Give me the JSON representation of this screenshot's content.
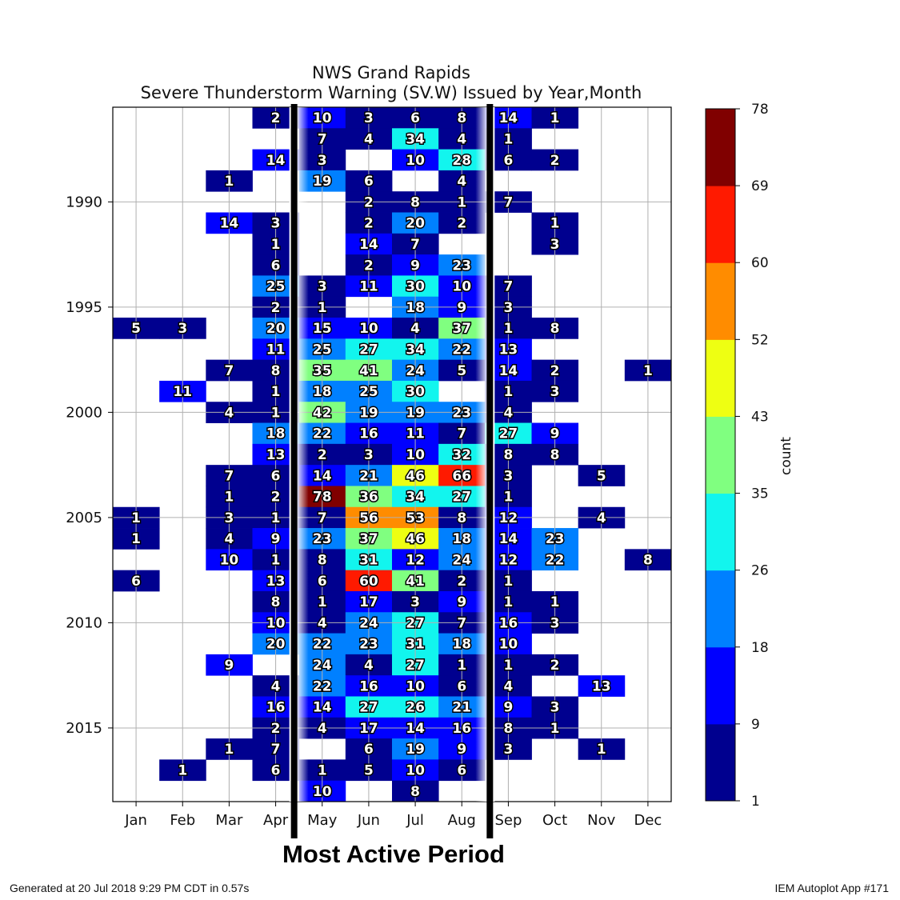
{
  "chart_data": {
    "type": "heatmap",
    "title": "NWS Grand Rapids",
    "subtitle": "Severe Thunderstorm Warning (SV.W) Issued by Year,Month",
    "months": [
      "Jan",
      "Feb",
      "Mar",
      "Apr",
      "May",
      "Jun",
      "Jul",
      "Aug",
      "Sep",
      "Oct",
      "Nov",
      "Dec"
    ],
    "years": [
      1986,
      1987,
      1988,
      1989,
      1990,
      1991,
      1992,
      1993,
      1994,
      1995,
      1996,
      1997,
      1998,
      1999,
      2000,
      2001,
      2002,
      2003,
      2004,
      2005,
      2006,
      2007,
      2008,
      2009,
      2010,
      2011,
      2012,
      2013,
      2014,
      2015,
      2016,
      2017,
      2018
    ],
    "y_ticks": [
      1990,
      1995,
      2000,
      2005,
      2010,
      2015
    ],
    "colorbar": {
      "label": "count",
      "ticks": [
        1,
        9,
        18,
        26,
        35,
        43,
        52,
        60,
        69,
        78
      ],
      "colors": [
        "#00008f",
        "#0000ff",
        "#0080ff",
        "#12f5ee",
        "#80ff80",
        "#eeff12",
        "#ff8c00",
        "#ff1a00",
        "#800000"
      ]
    },
    "values": [
      [
        null,
        null,
        null,
        2,
        10,
        3,
        6,
        8,
        14,
        1,
        null,
        null
      ],
      [
        null,
        null,
        null,
        null,
        7,
        4,
        34,
        4,
        1,
        null,
        null,
        null
      ],
      [
        null,
        null,
        null,
        14,
        3,
        null,
        10,
        28,
        6,
        2,
        null,
        null
      ],
      [
        null,
        null,
        1,
        null,
        19,
        6,
        null,
        4,
        null,
        null,
        null,
        null
      ],
      [
        null,
        null,
        null,
        null,
        null,
        2,
        8,
        1,
        7,
        null,
        null,
        null
      ],
      [
        null,
        null,
        14,
        3,
        null,
        2,
        20,
        2,
        null,
        1,
        null,
        null
      ],
      [
        null,
        null,
        null,
        1,
        null,
        14,
        7,
        null,
        null,
        3,
        null,
        null
      ],
      [
        null,
        null,
        null,
        6,
        null,
        2,
        9,
        23,
        null,
        null,
        null,
        null
      ],
      [
        null,
        null,
        null,
        25,
        3,
        11,
        30,
        10,
        7,
        null,
        null,
        null
      ],
      [
        null,
        null,
        null,
        2,
        1,
        null,
        18,
        9,
        3,
        null,
        null,
        null
      ],
      [
        5,
        3,
        null,
        20,
        15,
        10,
        4,
        37,
        1,
        8,
        null,
        null
      ],
      [
        null,
        null,
        null,
        11,
        25,
        27,
        34,
        22,
        13,
        null,
        null,
        null
      ],
      [
        null,
        null,
        7,
        8,
        35,
        41,
        24,
        5,
        14,
        2,
        null,
        1
      ],
      [
        null,
        11,
        null,
        1,
        18,
        25,
        30,
        null,
        1,
        3,
        null,
        null
      ],
      [
        null,
        null,
        4,
        1,
        42,
        19,
        19,
        23,
        4,
        null,
        null,
        null
      ],
      [
        null,
        null,
        null,
        18,
        22,
        16,
        11,
        7,
        27,
        9,
        null,
        null
      ],
      [
        null,
        null,
        null,
        13,
        2,
        3,
        10,
        32,
        8,
        8,
        null,
        null
      ],
      [
        null,
        null,
        7,
        6,
        14,
        21,
        46,
        66,
        3,
        null,
        5,
        null
      ],
      [
        null,
        null,
        1,
        2,
        78,
        36,
        34,
        27,
        1,
        null,
        null,
        null
      ],
      [
        1,
        null,
        3,
        1,
        7,
        56,
        53,
        8,
        12,
        null,
        4,
        null
      ],
      [
        1,
        null,
        4,
        9,
        23,
        37,
        46,
        18,
        14,
        23,
        null,
        null
      ],
      [
        null,
        null,
        10,
        1,
        8,
        31,
        12,
        24,
        12,
        22,
        null,
        8
      ],
      [
        6,
        null,
        null,
        13,
        6,
        60,
        41,
        2,
        1,
        null,
        null,
        null
      ],
      [
        null,
        null,
        null,
        8,
        1,
        17,
        3,
        9,
        1,
        1,
        null,
        null
      ],
      [
        null,
        null,
        null,
        10,
        4,
        24,
        27,
        7,
        16,
        3,
        null,
        null
      ],
      [
        null,
        null,
        null,
        20,
        22,
        23,
        31,
        18,
        10,
        null,
        null,
        null
      ],
      [
        null,
        null,
        9,
        null,
        24,
        4,
        27,
        1,
        1,
        2,
        null,
        null
      ],
      [
        null,
        null,
        null,
        4,
        22,
        16,
        10,
        6,
        4,
        null,
        13,
        null
      ],
      [
        null,
        null,
        null,
        16,
        14,
        27,
        26,
        21,
        9,
        3,
        null,
        null
      ],
      [
        null,
        null,
        null,
        2,
        4,
        17,
        14,
        16,
        8,
        1,
        null,
        null
      ],
      [
        null,
        null,
        1,
        7,
        null,
        6,
        19,
        9,
        3,
        null,
        1,
        null
      ],
      [
        null,
        1,
        null,
        6,
        1,
        5,
        10,
        6,
        null,
        null,
        null,
        null
      ],
      [
        null,
        null,
        null,
        null,
        10,
        null,
        8,
        null,
        null,
        null,
        null,
        null
      ]
    ]
  },
  "annotation": "Most Active Period",
  "footer": {
    "left": "Generated at 20 Jul 2018 9:29 PM CDT in 0.57s",
    "right": "IEM Autoplot App #171"
  }
}
